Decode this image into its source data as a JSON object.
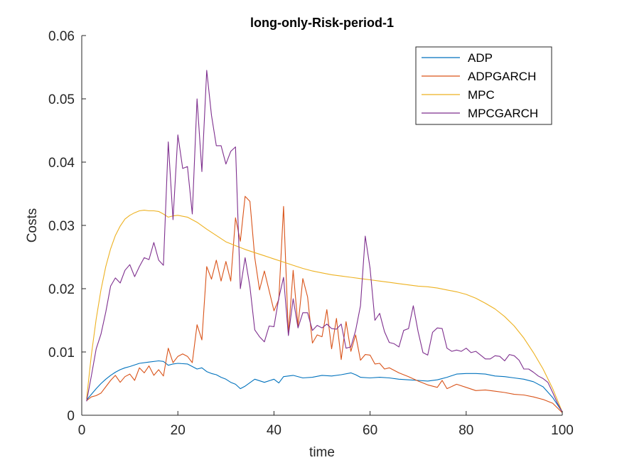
{
  "chart_data": {
    "type": "line",
    "title": "long-only-Risk-period-1",
    "xlabel": "time",
    "ylabel": "Costs",
    "xlim": [
      0,
      100
    ],
    "ylim": [
      0,
      0.06
    ],
    "xticks": [
      0,
      20,
      40,
      60,
      80,
      100
    ],
    "xtick_labels": [
      "0",
      "20",
      "40",
      "60",
      "80",
      "100"
    ],
    "yticks": [
      0,
      0.01,
      0.02,
      0.03,
      0.04,
      0.05,
      0.06
    ],
    "ytick_labels": [
      "0",
      "0.01",
      "0.02",
      "0.03",
      "0.04",
      "0.05",
      "0.06"
    ],
    "grid": false,
    "legend_position": "top-right",
    "series": [
      {
        "name": "ADP",
        "color": "#0072BD",
        "x": [
          1,
          2,
          3,
          4,
          5,
          6,
          7,
          8,
          9,
          10,
          12,
          14,
          16,
          17,
          18,
          19,
          20,
          22,
          24,
          25,
          26,
          27,
          28,
          29,
          30,
          31,
          32,
          33,
          34,
          36,
          38,
          40,
          41,
          42,
          44,
          46,
          48,
          50,
          52,
          54,
          56,
          57,
          58,
          60,
          62,
          64,
          66,
          68,
          70,
          72,
          74,
          76,
          78,
          80,
          82,
          84,
          86,
          88,
          90,
          92,
          94,
          96,
          98,
          100
        ],
        "y": [
          0.0024,
          0.0033,
          0.0042,
          0.005,
          0.0057,
          0.0063,
          0.0068,
          0.0072,
          0.0075,
          0.0077,
          0.0082,
          0.0084,
          0.0086,
          0.0085,
          0.0079,
          0.0081,
          0.0082,
          0.0081,
          0.0073,
          0.0075,
          0.0069,
          0.0066,
          0.0064,
          0.006,
          0.0057,
          0.0052,
          0.0049,
          0.0042,
          0.0046,
          0.0057,
          0.0052,
          0.0057,
          0.0051,
          0.0061,
          0.0063,
          0.0059,
          0.006,
          0.0063,
          0.0062,
          0.0064,
          0.0067,
          0.0064,
          0.006,
          0.0059,
          0.006,
          0.0059,
          0.0057,
          0.0056,
          0.0055,
          0.0054,
          0.0056,
          0.006,
          0.0065,
          0.0066,
          0.0066,
          0.0065,
          0.0062,
          0.0061,
          0.0059,
          0.0057,
          0.0053,
          0.0045,
          0.0028,
          0.0005
        ]
      },
      {
        "name": "ADPGARCH",
        "color": "#D95319",
        "x": [
          1,
          2,
          3,
          4,
          5,
          6,
          7,
          8,
          9,
          10,
          11,
          12,
          13,
          14,
          15,
          16,
          17,
          18,
          19,
          20,
          21,
          22,
          23,
          24,
          25,
          26,
          27,
          28,
          29,
          30,
          31,
          32,
          33,
          34,
          35,
          36,
          37,
          38,
          39,
          40,
          41,
          42,
          43,
          44,
          45,
          46,
          47,
          48,
          49,
          50,
          51,
          52,
          53,
          54,
          55,
          56,
          57,
          58,
          59,
          60,
          61,
          62,
          63,
          64,
          66,
          68,
          70,
          72,
          74,
          75,
          76,
          78,
          80,
          82,
          84,
          86,
          88,
          90,
          92,
          94,
          96,
          98,
          100
        ],
        "y": [
          0.0023,
          0.0029,
          0.0031,
          0.0035,
          0.0045,
          0.0055,
          0.0063,
          0.0052,
          0.0061,
          0.0065,
          0.0055,
          0.0075,
          0.0067,
          0.0078,
          0.0063,
          0.0072,
          0.0062,
          0.0106,
          0.0083,
          0.0093,
          0.0097,
          0.0093,
          0.0083,
          0.0143,
          0.0119,
          0.0235,
          0.0215,
          0.0245,
          0.0212,
          0.0243,
          0.0212,
          0.0312,
          0.0275,
          0.0346,
          0.0338,
          0.0249,
          0.0198,
          0.0228,
          0.0197,
          0.0165,
          0.0183,
          0.033,
          0.0128,
          0.0229,
          0.0141,
          0.0216,
          0.0187,
          0.0114,
          0.0127,
          0.0124,
          0.0167,
          0.0105,
          0.0153,
          0.0088,
          0.0148,
          0.0101,
          0.0127,
          0.0087,
          0.0096,
          0.0095,
          0.0081,
          0.0082,
          0.0073,
          0.0075,
          0.0067,
          0.0061,
          0.0054,
          0.0048,
          0.0044,
          0.0055,
          0.0042,
          0.0049,
          0.0044,
          0.0039,
          0.004,
          0.0038,
          0.0036,
          0.0033,
          0.0032,
          0.0029,
          0.0025,
          0.0019,
          0.0004
        ]
      },
      {
        "name": "MPC",
        "color": "#EDB120",
        "x": [
          1,
          2,
          3,
          4,
          5,
          6,
          7,
          8,
          9,
          10,
          11,
          12,
          13,
          14,
          15,
          16,
          17,
          18,
          19,
          20,
          22,
          24,
          26,
          28,
          30,
          32,
          34,
          36,
          38,
          40,
          42,
          44,
          46,
          48,
          50,
          52,
          54,
          56,
          58,
          60,
          62,
          64,
          66,
          68,
          70,
          72,
          74,
          76,
          78,
          80,
          82,
          84,
          86,
          88,
          90,
          92,
          94,
          96,
          98,
          100
        ],
        "y": [
          0.0026,
          0.0095,
          0.0152,
          0.0198,
          0.0235,
          0.0263,
          0.0284,
          0.0299,
          0.031,
          0.0316,
          0.032,
          0.0323,
          0.0324,
          0.0323,
          0.0323,
          0.0322,
          0.0318,
          0.0313,
          0.0315,
          0.0316,
          0.0313,
          0.0305,
          0.0294,
          0.0284,
          0.0274,
          0.0268,
          0.0262,
          0.0257,
          0.0252,
          0.0247,
          0.0242,
          0.0237,
          0.0232,
          0.0228,
          0.0225,
          0.0222,
          0.022,
          0.0218,
          0.0216,
          0.0214,
          0.0212,
          0.021,
          0.0208,
          0.0206,
          0.0204,
          0.0203,
          0.0201,
          0.0198,
          0.0195,
          0.0191,
          0.0185,
          0.0177,
          0.0168,
          0.0156,
          0.0141,
          0.0122,
          0.0099,
          0.0073,
          0.0042,
          0.0005
        ]
      },
      {
        "name": "MPCGARCH",
        "color": "#7E2F8E",
        "x": [
          1,
          2,
          3,
          4,
          5,
          6,
          7,
          8,
          9,
          10,
          11,
          12,
          13,
          14,
          15,
          16,
          17,
          18,
          19,
          20,
          21,
          22,
          23,
          24,
          25,
          26,
          27,
          28,
          29,
          30,
          31,
          32,
          33,
          34,
          35,
          36,
          37,
          38,
          39,
          40,
          41,
          42,
          43,
          44,
          45,
          46,
          47,
          48,
          49,
          50,
          51,
          52,
          53,
          54,
          55,
          56,
          57,
          58,
          59,
          60,
          61,
          62,
          63,
          64,
          65,
          66,
          67,
          68,
          69,
          70,
          71,
          72,
          73,
          74,
          75,
          76,
          77,
          78,
          79,
          80,
          81,
          82,
          83,
          84,
          85,
          86,
          87,
          88,
          89,
          90,
          91,
          92,
          93,
          94,
          95,
          96,
          97,
          98,
          99,
          100
        ],
        "y": [
          0.0022,
          0.0062,
          0.0105,
          0.0128,
          0.0163,
          0.0204,
          0.0217,
          0.0209,
          0.0229,
          0.0238,
          0.0219,
          0.0235,
          0.0249,
          0.0246,
          0.0273,
          0.0245,
          0.0237,
          0.0432,
          0.0309,
          0.0443,
          0.039,
          0.0393,
          0.0318,
          0.05,
          0.0385,
          0.0545,
          0.0474,
          0.0426,
          0.0426,
          0.0397,
          0.0417,
          0.0424,
          0.02,
          0.0249,
          0.0203,
          0.0135,
          0.0124,
          0.0116,
          0.0141,
          0.014,
          0.0185,
          0.0218,
          0.0126,
          0.0184,
          0.0138,
          0.0162,
          0.0162,
          0.0134,
          0.0142,
          0.0138,
          0.0144,
          0.0137,
          0.0136,
          0.0144,
          0.0106,
          0.0108,
          0.0134,
          0.0173,
          0.0283,
          0.0232,
          0.015,
          0.0161,
          0.0132,
          0.0115,
          0.0113,
          0.0108,
          0.0134,
          0.0137,
          0.0173,
          0.0132,
          0.0099,
          0.0095,
          0.0131,
          0.0138,
          0.0137,
          0.0106,
          0.0101,
          0.0103,
          0.0101,
          0.0106,
          0.0099,
          0.0101,
          0.0095,
          0.0089,
          0.0089,
          0.0094,
          0.0093,
          0.0086,
          0.0096,
          0.0094,
          0.0087,
          0.0073,
          0.0073,
          0.0068,
          0.0062,
          0.0058,
          0.0052,
          0.0036,
          0.0019,
          0.0005
        ]
      }
    ]
  }
}
